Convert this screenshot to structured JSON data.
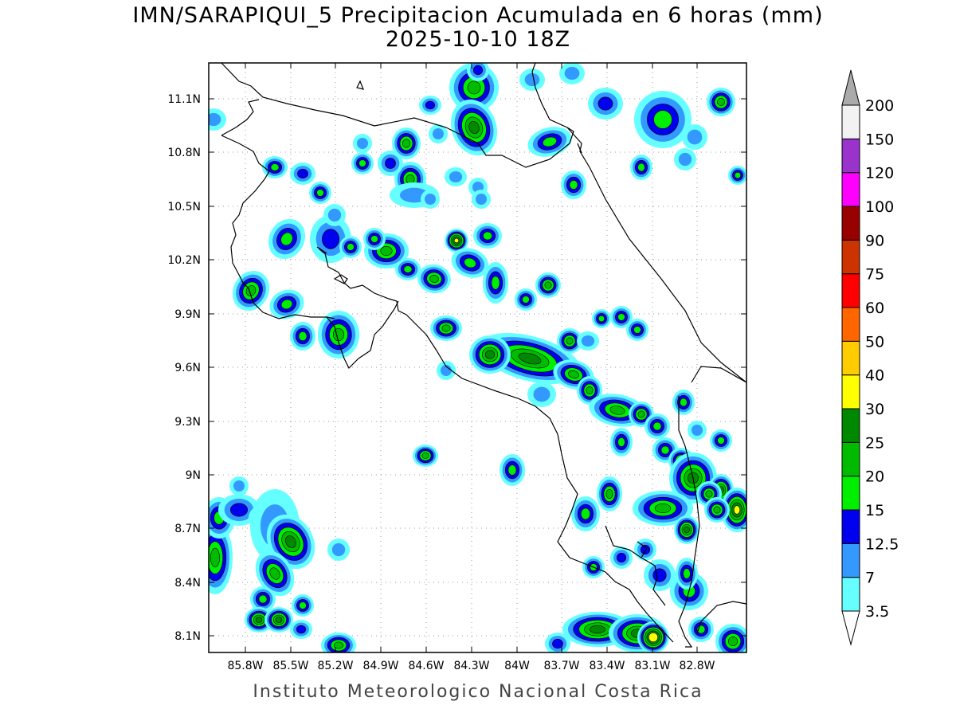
{
  "title": "IMN/SARAPIQUI_5 Precipitacion Acumulada en 6 horas (mm)",
  "subtitle": "2025-10-10 18Z",
  "footer": "Instituto Meteorologico Nacional Costa Rica",
  "axes": {
    "lon_ticks": [
      "85.8W",
      "85.5W",
      "85.2W",
      "84.9W",
      "84.6W",
      "84.3W",
      "84W",
      "83.7W",
      "83.4W",
      "83.1W",
      "82.8W"
    ],
    "lat_ticks": [
      "11.1N",
      "10.8N",
      "10.5N",
      "10.2N",
      "9.9N",
      "9.6N",
      "9.3N",
      "9N",
      "8.7N",
      "8.4N",
      "8.1N"
    ]
  },
  "colorbar": {
    "labels": [
      "3.5",
      "7",
      "12.5",
      "15",
      "20",
      "25",
      "30",
      "40",
      "50",
      "60",
      "75",
      "90",
      "100",
      "120",
      "150",
      "200"
    ],
    "colors": [
      "#66ffff",
      "#3399ff",
      "#0000ee",
      "#00ee00",
      "#00bb00",
      "#008800",
      "#ffff00",
      "#ffcc00",
      "#ff6600",
      "#ff0000",
      "#cc3300",
      "#990000",
      "#ff00ff",
      "#9933cc",
      "#f2f2f2"
    ],
    "under_color": "#ffffff",
    "over_color": "#aaaaaa"
  },
  "precip_colors": {
    "c1": "#66ffff",
    "c2": "#3399ff",
    "c3": "#0000ee",
    "c4": "#00ee00",
    "c5": "#00bb00",
    "c6": "#008800",
    "c7": "#ffff00"
  }
}
